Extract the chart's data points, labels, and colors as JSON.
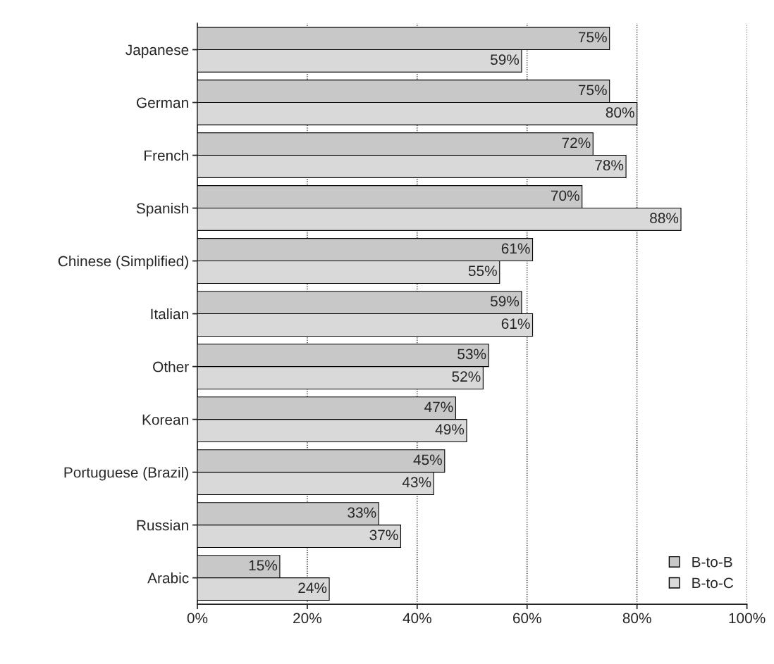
{
  "chart_data": {
    "type": "bar",
    "orientation": "horizontal",
    "categories": [
      "Japanese",
      "German",
      "French",
      "Spanish",
      "Chinese (Simplified)",
      "Italian",
      "Other",
      "Korean",
      "Portuguese (Brazil)",
      "Russian",
      "Arabic"
    ],
    "series": [
      {
        "name": "B-to-B",
        "color": "#c8c8c8",
        "values": [
          75,
          75,
          72,
          70,
          61,
          59,
          53,
          47,
          45,
          33,
          15
        ],
        "value_labels": [
          "75%",
          "75%",
          "72%",
          "70%",
          "61%",
          "59%",
          "53%",
          "47%",
          "45%",
          "33%",
          "15%"
        ]
      },
      {
        "name": "B-to-C",
        "color": "#d9d9d9",
        "values": [
          59,
          80,
          78,
          88,
          55,
          61,
          52,
          49,
          43,
          37,
          24
        ],
        "value_labels": [
          "59%",
          "80%",
          "78%",
          "88%",
          "55%",
          "61%",
          "52%",
          "49%",
          "43%",
          "37%",
          "24%"
        ]
      }
    ],
    "xlim": [
      0,
      100
    ],
    "xticks": [
      {
        "value": 0,
        "label": "0%"
      },
      {
        "value": 20,
        "label": "20%"
      },
      {
        "value": 40,
        "label": "40%"
      },
      {
        "value": 60,
        "label": "60%"
      },
      {
        "value": 80,
        "label": "80%"
      },
      {
        "value": 100,
        "label": "100%"
      }
    ],
    "grid": "x",
    "legend": "bottom right"
  }
}
